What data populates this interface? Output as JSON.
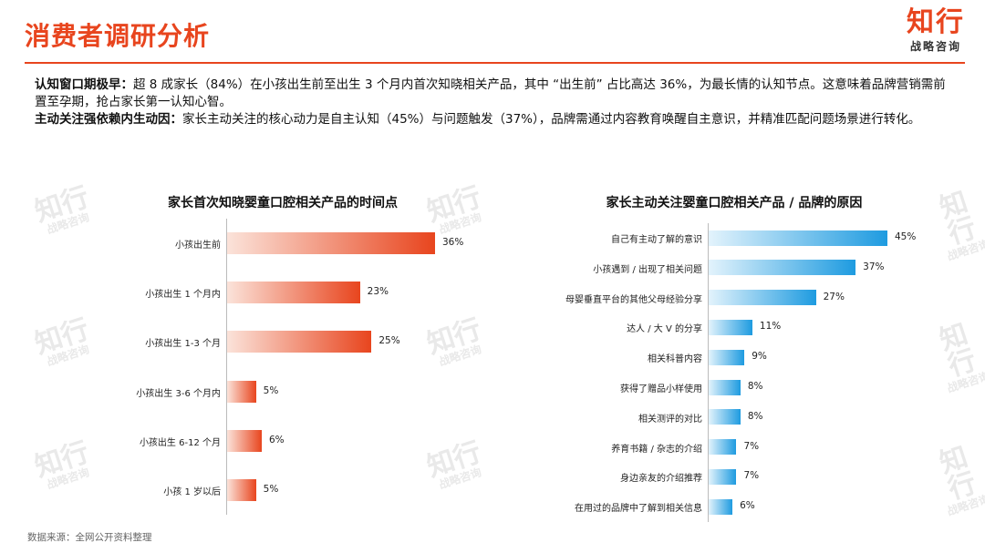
{
  "header": {
    "title": "消费者调研分析",
    "logo_main": "知行",
    "logo_sub": "战略咨询"
  },
  "summary": {
    "p1_label": "认知窗口期极早：",
    "p1_text": "超 8 成家长（84%）在小孩出生前至出生 3 个月内首次知晓相关产品，其中 “出生前” 占比高达 36%，为最长情的认知节点。这意味着品牌营销需前置至孕期，抢占家长第一认知心智。",
    "p2_label": "主动关注强依赖内生动因：",
    "p2_text": "家长主动关注的核心动力是自主认知（45%）与问题触发（37%），品牌需通过内容教育唤醒自主意识，并精准匹配问题场景进行转化。"
  },
  "watermark": {
    "main": "知行",
    "sub": "战略咨询"
  },
  "chart_data": [
    {
      "type": "bar",
      "orientation": "horizontal",
      "title": "家长首次知晓婴童口腔相关产品的时间点",
      "categories": [
        "小孩出生前",
        "小孩出生 1 个月内",
        "小孩出生 1-3 个月",
        "小孩出生 3-6 个月内",
        "小孩出生 6-12 个月",
        "小孩 1 岁以后"
      ],
      "values": [
        36,
        23,
        25,
        5,
        6,
        5
      ],
      "value_suffix": "%",
      "color": "#E8451E",
      "xlim": [
        0,
        36
      ]
    },
    {
      "type": "bar",
      "orientation": "horizontal",
      "title": "家长主动关注婴童口腔相关产品 / 品牌的原因",
      "categories": [
        "自己有主动了解的意识",
        "小孩遇到 / 出现了相关问题",
        "母婴垂直平台的其他父母经验分享",
        "达人 / 大 V 的分享",
        "相关科普内容",
        "获得了赠品小样使用",
        "相关测评的对比",
        "养育书籍 / 杂志的介绍",
        "身边亲友的介绍推荐",
        "在用过的品牌中了解到相关信息"
      ],
      "values": [
        45,
        37,
        27,
        11,
        9,
        8,
        8,
        7,
        7,
        6
      ],
      "value_suffix": "%",
      "color": "#1E9BE0",
      "xlim": [
        0,
        45
      ]
    }
  ],
  "footer": {
    "source": "数据来源：全网公开资料整理"
  }
}
